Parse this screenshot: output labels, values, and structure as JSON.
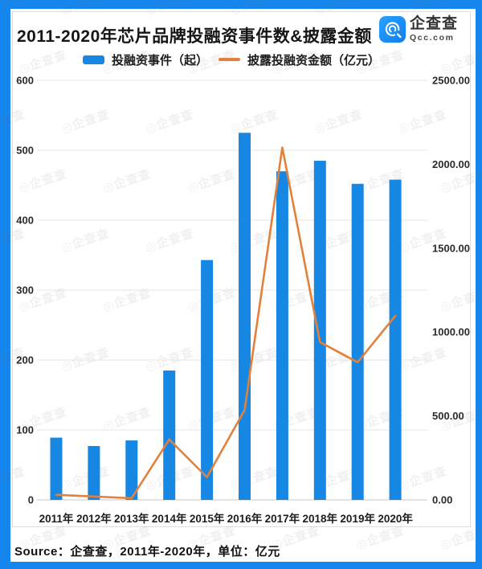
{
  "header": {
    "title": "2011-2020年芯片品牌投融资事件数&披露金额",
    "logo": {
      "name": "企查查",
      "domain": "Qcc.com"
    }
  },
  "legend": [
    {
      "label": "投融资事件（起）",
      "type": "bar",
      "color": "#1787e4"
    },
    {
      "label": "披露投融资金额（亿元）",
      "type": "line",
      "color": "#e2813c"
    }
  ],
  "chart_data": {
    "type": "bar+line combo",
    "title": "2011-2020年芯片品牌投融资事件数&披露金额",
    "categories": [
      "2011年",
      "2012年",
      "2013年",
      "2014年",
      "2015年",
      "2016年",
      "2017年",
      "2018年",
      "2019年",
      "2020年"
    ],
    "series": [
      {
        "name": "投融资事件（起）",
        "type": "bar",
        "axis": "left",
        "color": "#1787e4",
        "values": [
          89,
          77,
          85,
          185,
          343,
          525,
          470,
          485,
          452,
          458
        ]
      },
      {
        "name": "披露投融资金额（亿元）",
        "type": "line",
        "axis": "right",
        "color": "#e2813c",
        "values": [
          30,
          20,
          10,
          360,
          135,
          535,
          2100,
          940,
          820,
          1097
        ]
      }
    ],
    "left_axis": {
      "min": 0,
      "max": 600,
      "tick_values": [
        600,
        500,
        400,
        300,
        200,
        100,
        0
      ],
      "tick_labels": [
        "600",
        "500",
        "400",
        "300",
        "200",
        "100",
        "0"
      ]
    },
    "right_axis": {
      "min": 0,
      "max": 2500,
      "tick_values": [
        2500,
        2000,
        1500,
        1000,
        500,
        0
      ],
      "tick_labels": [
        "2500.00",
        "2000.00",
        "1500.00",
        "1000.00",
        "500.00",
        "0.00"
      ]
    },
    "grid": true,
    "legend_position": "top"
  },
  "footer": {
    "source": "Source：企查查，2011年-2020年，单位：亿元"
  },
  "watermark": {
    "text": "◎企查查"
  },
  "colors": {
    "frame_blue": "#1486ee",
    "bar_blue": "#1787e4",
    "line_orange": "#e2813c",
    "gridline": "#e6e6e6",
    "axis_line": "#c9c9c9"
  }
}
